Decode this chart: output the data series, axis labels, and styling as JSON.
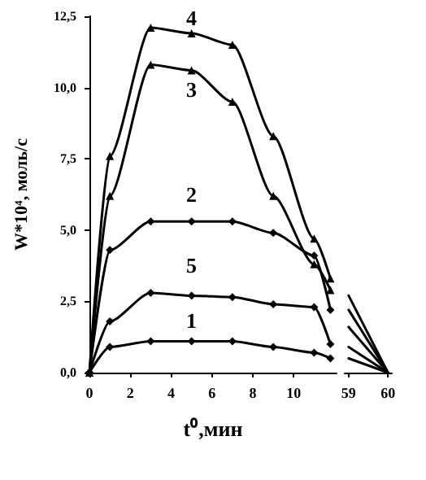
{
  "chart_data": [
    {
      "type": "line",
      "xlabel": "t⁰,мин",
      "ylabel": "W*10⁴, моль/с",
      "xlim": [
        0,
        12.1
      ],
      "xticks": [
        0,
        2,
        4,
        6,
        8,
        10
      ],
      "ylim": [
        0,
        12.5
      ],
      "yticks": [
        {
          "value": 0,
          "label": "0,0"
        },
        {
          "value": 2.5,
          "label": "2,5"
        },
        {
          "value": 5,
          "label": "5,0"
        },
        {
          "value": 7.5,
          "label": "7,5"
        },
        {
          "value": 10,
          "label": "10,0"
        },
        {
          "value": 12.5,
          "label": "12,5"
        }
      ],
      "grid": false,
      "legend": false,
      "line_style": "solid",
      "series": [
        {
          "name": "4",
          "color": "#000000",
          "marker": "triangle",
          "x": [
            0,
            1,
            3,
            5,
            7,
            9,
            11,
            11.8
          ],
          "values": [
            0,
            7.6,
            12.1,
            11.9,
            11.5,
            8.3,
            4.7,
            3.3
          ]
        },
        {
          "name": "3",
          "color": "#000000",
          "marker": "triangle",
          "x": [
            0,
            1,
            3,
            5,
            7,
            9,
            11,
            11.8
          ],
          "values": [
            0,
            6.2,
            10.8,
            10.6,
            9.5,
            6.2,
            3.8,
            2.9
          ]
        },
        {
          "name": "2",
          "color": "#000000",
          "marker": "diamond",
          "x": [
            0,
            1,
            3,
            5,
            7,
            9,
            11,
            11.8
          ],
          "values": [
            0,
            4.3,
            5.3,
            5.3,
            5.3,
            4.9,
            4.1,
            2.2
          ]
        },
        {
          "name": "5",
          "color": "#000000",
          "marker": "diamond",
          "x": [
            0,
            1,
            3,
            5,
            7,
            9,
            11,
            11.8
          ],
          "values": [
            0,
            1.8,
            2.8,
            2.7,
            2.65,
            2.4,
            2.3,
            1.0
          ]
        },
        {
          "name": "1",
          "color": "#000000",
          "marker": "diamond",
          "x": [
            0,
            1,
            3,
            5,
            7,
            9,
            11,
            11.8
          ],
          "values": [
            0,
            0.9,
            1.1,
            1.1,
            1.1,
            0.9,
            0.7,
            0.5
          ]
        }
      ]
    },
    {
      "type": "line",
      "xlim": [
        58.9,
        60.1
      ],
      "xticks": [
        59,
        60
      ],
      "ylim": [
        0,
        12.5
      ],
      "tick_labels": "x",
      "grid": false,
      "legend": false,
      "line_style": "solid",
      "marker": "none",
      "series": [
        {
          "color": "#000000",
          "x": [
            59,
            60
          ],
          "values": [
            2.7,
            0
          ]
        },
        {
          "color": "#000000",
          "x": [
            59,
            60
          ],
          "values": [
            2.2,
            0
          ]
        },
        {
          "color": "#000000",
          "x": [
            59,
            60
          ],
          "values": [
            1.6,
            0
          ]
        },
        {
          "color": "#000000",
          "x": [
            59,
            60
          ],
          "values": [
            0.9,
            0
          ]
        },
        {
          "color": "#000000",
          "x": [
            59,
            60
          ],
          "values": [
            0.5,
            0
          ]
        }
      ]
    }
  ]
}
